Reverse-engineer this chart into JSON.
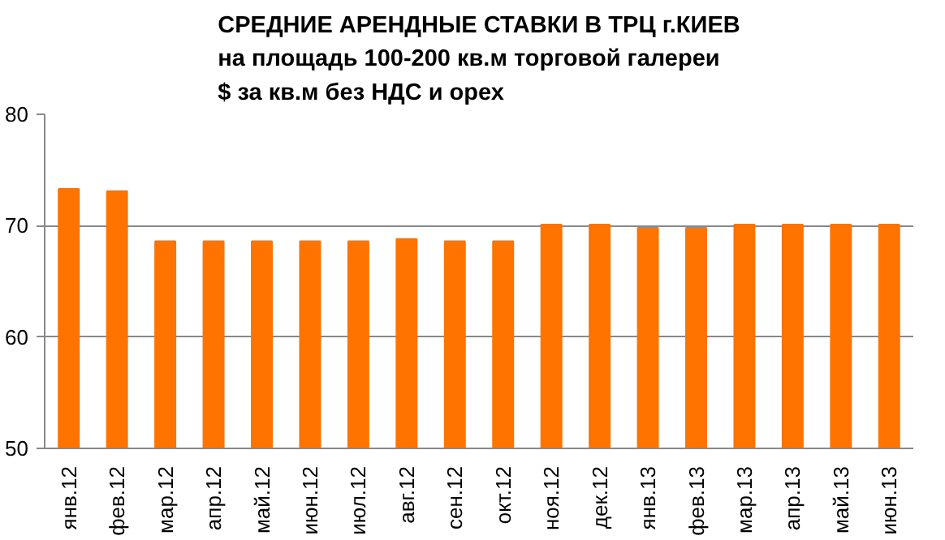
{
  "chart_data": {
    "type": "bar",
    "title": "СРЕДНИЕ АРЕНДНЫЕ СТАВКИ В ТРЦ г.КИЕВ\nна площадь 100-200 кв.м торговой галереи\n$ за кв.м без НДС и орех",
    "categories": [
      "янв.12",
      "фев.12",
      "мар.12",
      "апр.12",
      "май.12",
      "июн.12",
      "июл.12",
      "авг.12",
      "сен.12",
      "окт.12",
      "ноя.12",
      "дек.12",
      "янв.13",
      "фев.13",
      "мар.13",
      "апр.13",
      "май.13",
      "июн.13"
    ],
    "values": [
      73.3,
      73.1,
      68.6,
      68.6,
      68.6,
      68.6,
      68.6,
      68.8,
      68.6,
      68.6,
      70.1,
      70.1,
      69.8,
      69.8,
      70.1,
      70.1,
      70.1,
      70.1
    ],
    "color": "#ff7300",
    "ylim": [
      50,
      80
    ],
    "yticks": [
      50,
      60,
      70,
      80
    ],
    "grid": "y"
  }
}
